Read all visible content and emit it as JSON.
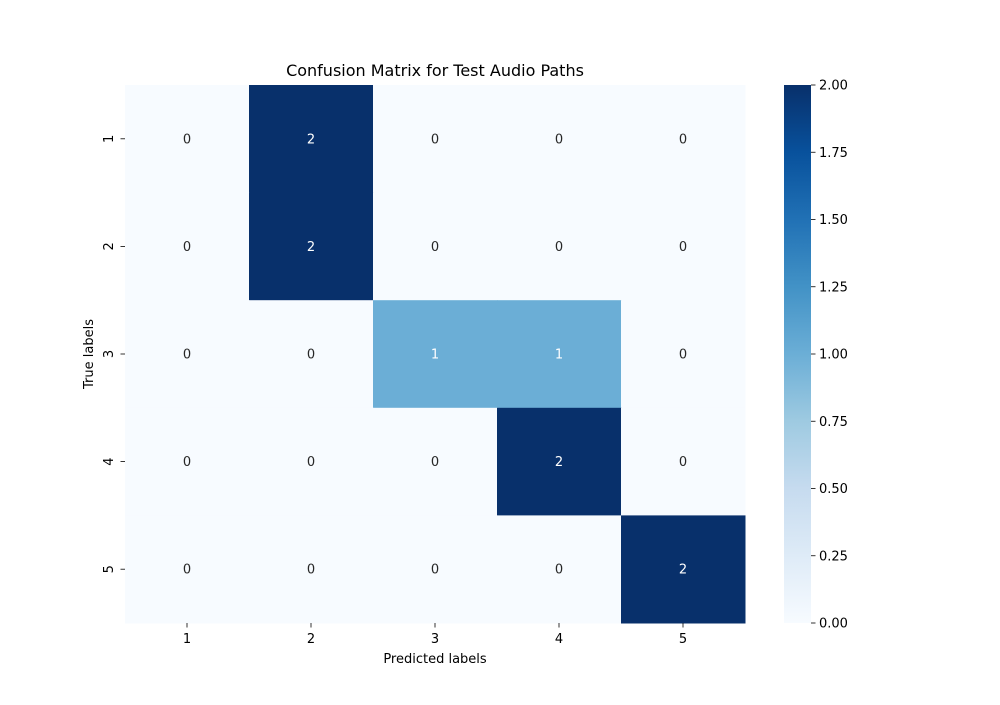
{
  "chart_data": {
    "type": "heatmap",
    "title": "Confusion Matrix for Test Audio Paths",
    "xlabel": "Predicted labels",
    "ylabel": "True labels",
    "x_categories": [
      "1",
      "2",
      "3",
      "4",
      "5"
    ],
    "y_categories": [
      "1",
      "2",
      "3",
      "4",
      "5"
    ],
    "values": [
      [
        0,
        2,
        0,
        0,
        0
      ],
      [
        0,
        2,
        0,
        0,
        0
      ],
      [
        0,
        0,
        1,
        1,
        0
      ],
      [
        0,
        0,
        0,
        2,
        0
      ],
      [
        0,
        0,
        0,
        0,
        2
      ]
    ],
    "colorbar": {
      "min": 0,
      "max": 2,
      "ticks": [
        "0.00",
        "0.25",
        "0.50",
        "0.75",
        "1.00",
        "1.25",
        "1.50",
        "1.75",
        "2.00"
      ]
    },
    "colormap": "Blues",
    "colors": {
      "low": "#f7fbff",
      "mid": "#6baed6",
      "high": "#08306b"
    },
    "grid": false,
    "legend": "none"
  }
}
